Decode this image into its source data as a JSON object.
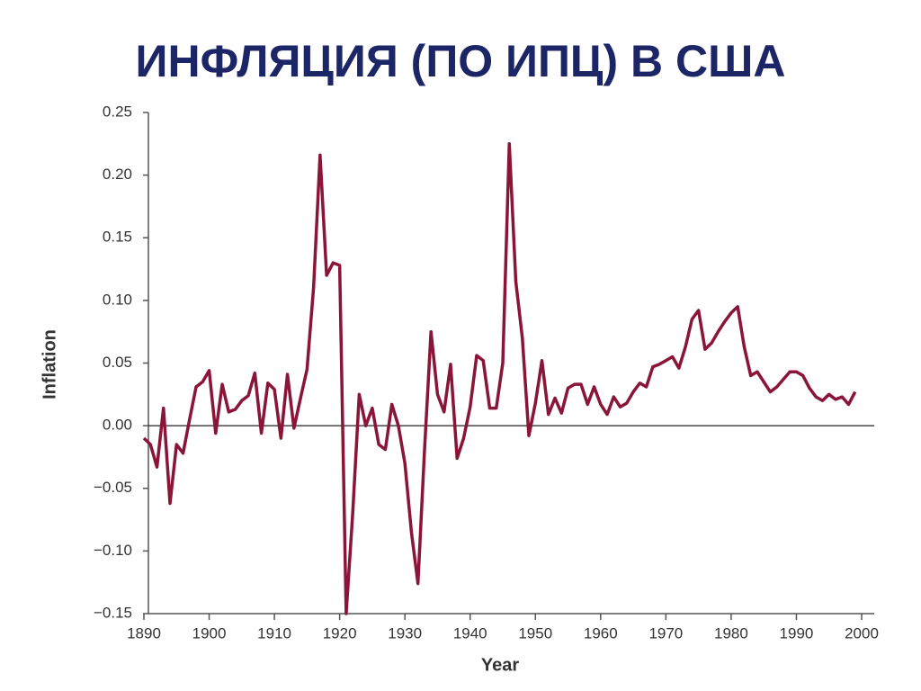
{
  "chart_data": {
    "type": "line",
    "title": "ИНФЛЯЦИЯ (ПО ИПЦ) В США",
    "x_label": "Year",
    "y_label": "Inflation",
    "color": "#8a1538",
    "zero_line": true,
    "x": [
      1890,
      1891,
      1892,
      1893,
      1894,
      1895,
      1896,
      1897,
      1898,
      1899,
      1900,
      1901,
      1902,
      1903,
      1904,
      1905,
      1906,
      1907,
      1908,
      1909,
      1910,
      1911,
      1912,
      1913,
      1914,
      1915,
      1916,
      1917,
      1918,
      1919,
      1920,
      1921,
      1922,
      1923,
      1924,
      1925,
      1926,
      1927,
      1928,
      1929,
      1930,
      1931,
      1932,
      1933,
      1934,
      1935,
      1936,
      1937,
      1938,
      1939,
      1940,
      1941,
      1942,
      1943,
      1944,
      1945,
      1946,
      1947,
      1948,
      1949,
      1950,
      1951,
      1952,
      1953,
      1954,
      1955,
      1956,
      1957,
      1958,
      1959,
      1960,
      1961,
      1962,
      1963,
      1964,
      1965,
      1966,
      1967,
      1968,
      1969,
      1970,
      1971,
      1972,
      1973,
      1974,
      1975,
      1976,
      1977,
      1978,
      1979,
      1980,
      1981,
      1982,
      1983,
      1984,
      1985,
      1986,
      1987,
      1988,
      1989,
      1990,
      1991,
      1992,
      1993,
      1994,
      1995,
      1996,
      1997,
      1998,
      1999
    ],
    "values": [
      -0.01,
      -0.015,
      -0.033,
      0.014,
      -0.062,
      -0.015,
      -0.022,
      0.005,
      0.031,
      0.035,
      0.044,
      -0.006,
      0.033,
      0.011,
      0.013,
      0.02,
      0.024,
      0.042,
      -0.006,
      0.034,
      0.029,
      -0.01,
      0.041,
      -0.002,
      0.022,
      0.045,
      0.11,
      0.216,
      0.12,
      0.13,
      0.128,
      -0.15,
      -0.07,
      0.025,
      0.0,
      0.014,
      -0.015,
      -0.019,
      0.017,
      0.0,
      -0.03,
      -0.085,
      -0.126,
      -0.02,
      0.075,
      0.025,
      0.011,
      0.049,
      -0.026,
      -0.01,
      0.015,
      0.056,
      0.052,
      0.014,
      0.014,
      0.05,
      0.225,
      0.115,
      0.07,
      -0.008,
      0.018,
      0.052,
      0.009,
      0.022,
      0.01,
      0.03,
      0.033,
      0.033,
      0.017,
      0.031,
      0.017,
      0.009,
      0.023,
      0.015,
      0.018,
      0.027,
      0.034,
      0.031,
      0.047,
      0.049,
      0.052,
      0.055,
      0.046,
      0.063,
      0.085,
      0.092,
      0.061,
      0.066,
      0.075,
      0.083,
      0.09,
      0.095,
      0.063,
      0.04,
      0.043,
      0.035,
      0.027,
      0.031,
      0.037,
      0.043,
      0.043,
      0.04,
      0.03,
      0.023,
      0.02,
      0.025,
      0.021,
      0.023,
      0.017,
      0.027
    ],
    "xlim": [
      1890,
      2000
    ],
    "xticks": [
      1890,
      1900,
      1910,
      1920,
      1930,
      1940,
      1950,
      1960,
      1970,
      1980,
      1990,
      2000
    ],
    "ylim": [
      -0.15,
      0.25
    ],
    "yticks": [
      0.25,
      {
        "value": 0.2,
        "label": "0.20"
      },
      0.15,
      {
        "value": 0.1,
        "label": "0.10"
      },
      0.05,
      {
        "value": 0,
        "label": "0.00"
      },
      {
        "value": -0.05,
        "label": "−0.05"
      },
      {
        "value": -0.1,
        "label": "−0.10"
      },
      {
        "value": -0.15,
        "label": "−0.15"
      }
    ]
  }
}
